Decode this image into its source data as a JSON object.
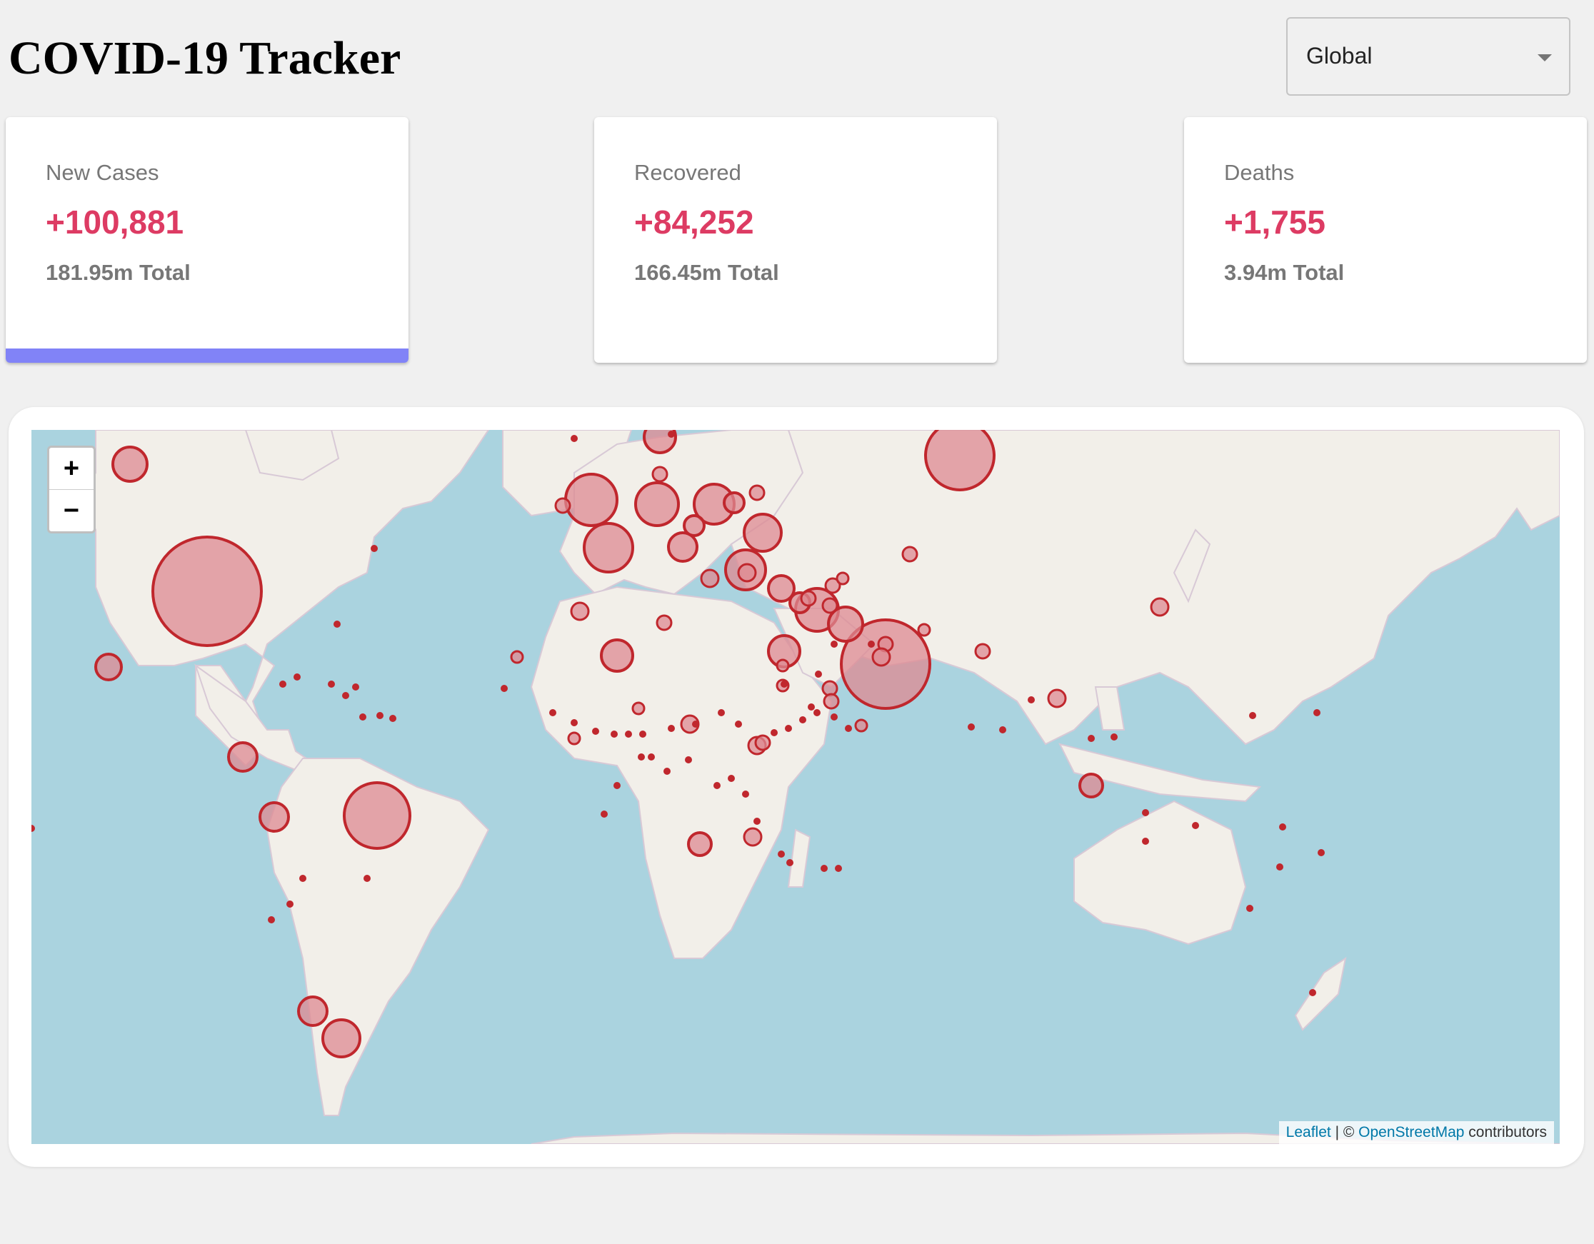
{
  "app": {
    "title": "COVID-19 Tracker"
  },
  "country_select": {
    "selected": "Global"
  },
  "cards": [
    {
      "title": "New Cases",
      "value": "+100,881",
      "total": "181.95m Total",
      "active": true
    },
    {
      "title": "Recovered",
      "value": "+84,252",
      "total": "166.45m Total",
      "active": false
    },
    {
      "title": "Deaths",
      "value": "+1,755",
      "total": "3.94m Total",
      "active": false
    }
  ],
  "map": {
    "zoom_in": "+",
    "zoom_out": "−",
    "attribution": {
      "leaflet": "Leaflet",
      "separator": " | © ",
      "osm": "OpenStreetMap",
      "suffix": " contributors"
    },
    "colors": {
      "water": "#aad3df",
      "land": "#f2efe9",
      "circle_fill": "#dd8a92",
      "circle_stroke": "#c0272d",
      "accent_bar": "#8183f7",
      "value_text": "#dd3b63"
    }
  }
}
